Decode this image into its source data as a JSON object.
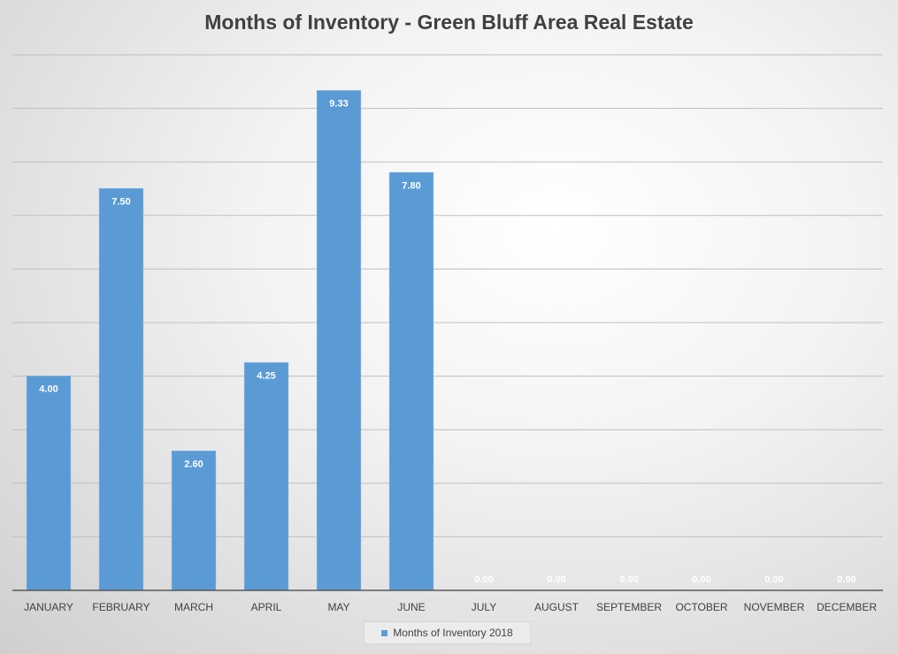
{
  "chart_data": {
    "type": "bar",
    "title": "Months of Inventory - Green Bluff Area Real Estate",
    "categories": [
      "JANUARY",
      "FEBRUARY",
      "MARCH",
      "APRIL",
      "MAY",
      "JUNE",
      "JULY",
      "AUGUST",
      "SEPTEMBER",
      "OCTOBER",
      "NOVEMBER",
      "DECEMBER"
    ],
    "series": [
      {
        "name": "Months of Inventory 2018",
        "values": [
          4.0,
          7.5,
          2.6,
          4.25,
          9.33,
          7.8,
          0.0,
          0.0,
          0.0,
          0.0,
          0.0,
          0.0
        ],
        "data_labels": [
          "4.00",
          "7.50",
          "2.60",
          "4.25",
          "9.33",
          "7.80",
          "0.00",
          "0.00",
          "0.00",
          "0.00",
          "0.00",
          "0.00"
        ],
        "color": "#5b9bd5"
      }
    ],
    "ylim": [
      0,
      10
    ],
    "y_gridline_step": 1,
    "y_tick_labels_shown": false,
    "grid": true,
    "legend_position": "bottom",
    "gridline_color": "#bfbfbf",
    "axis_color": "#595959",
    "label_color": "#404040"
  }
}
